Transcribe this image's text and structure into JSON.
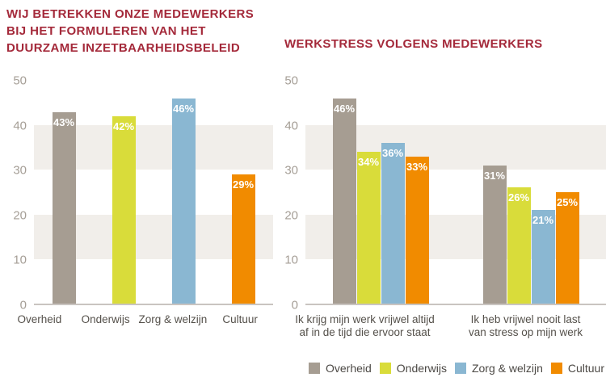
{
  "page": {
    "background_color": "#ffffff",
    "title_color": "#a4293a",
    "stripe_color": "#f1eeea",
    "axis_line_color": "#c9c4c0",
    "tick_label_color": "#a59e96"
  },
  "legend": {
    "position": "bottom-right",
    "items": [
      {
        "label": "Overheid",
        "color": "#a69d92"
      },
      {
        "label": "Onderwijs",
        "color": "#d9dc3a"
      },
      {
        "label": "Zorg & welzijn",
        "color": "#8ab7d2"
      },
      {
        "label": "Cultuur",
        "color": "#f18b00"
      }
    ]
  },
  "chart_data": [
    {
      "type": "bar",
      "title": "WIJ BETREKKEN ONZE MEDEWERKERS BIJ HET FORMULEREN VAN HET DUURZAME INZETBAARHEIDSBELEID",
      "title_lines": [
        "WIJ BETREKKEN ONZE MEDEWERKERS",
        "BIJ HET FORMULEREN VAN HET",
        "DUURZAME INZETBAARHEIDSBELEID"
      ],
      "categories": [
        "Overheid",
        "Onderwijs",
        "Zorg & welzijn",
        "Cultuur"
      ],
      "values": [
        43,
        42,
        46,
        29
      ],
      "unit": "%",
      "xlabel": "",
      "ylabel": "",
      "ylim": [
        0,
        50
      ],
      "yticks": [
        0,
        10,
        20,
        30,
        40,
        50
      ],
      "stripe_bands": [
        [
          10,
          20
        ],
        [
          30,
          40
        ]
      ],
      "legend_position": "none"
    },
    {
      "type": "bar",
      "title": "WERKSTRESS VOLGENS MEDEWERKERS",
      "categories": [
        "Ik krijg mijn werk vrijwel altijd af in de tijd die ervoor staat",
        "Ik heb vrijwel nooit last van stress op mijn werk"
      ],
      "category_lines": [
        [
          "Ik krijg mijn werk vrijwel altijd",
          "af in de tijd die ervoor staat"
        ],
        [
          "Ik heb vrijwel nooit last",
          "van stress op mijn werk"
        ]
      ],
      "series": [
        {
          "name": "Overheid",
          "values": [
            46,
            31
          ]
        },
        {
          "name": "Onderwijs",
          "values": [
            34,
            26
          ]
        },
        {
          "name": "Zorg & welzijn",
          "values": [
            36,
            21
          ]
        },
        {
          "name": "Cultuur",
          "values": [
            33,
            25
          ]
        }
      ],
      "unit": "%",
      "xlabel": "",
      "ylabel": "",
      "ylim": [
        0,
        50
      ],
      "yticks": [
        0,
        10,
        20,
        30,
        40,
        50
      ],
      "stripe_bands": [
        [
          10,
          20
        ],
        [
          30,
          40
        ]
      ],
      "legend_position": "bottom"
    }
  ]
}
